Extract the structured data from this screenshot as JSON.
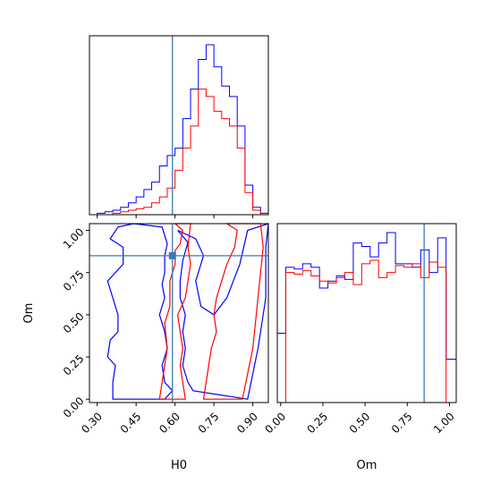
{
  "chart_data": {
    "type": "corner",
    "parameters": [
      "H0",
      "Om"
    ],
    "colors": {
      "series_a": "#0000ff",
      "series_b": "#ff0000",
      "truth": "#3a7bb8"
    },
    "truth": {
      "H0": 0.59,
      "Om": 0.85
    },
    "axes": {
      "H0": {
        "label": "H0",
        "range": [
          0.27,
          0.96
        ],
        "ticks": [
          0.3,
          0.45,
          0.6,
          0.75,
          0.9
        ],
        "tick_labels": [
          "0.30",
          "0.45",
          "0.60",
          "0.75",
          "0.90"
        ]
      },
      "Om": {
        "label": "Om",
        "range": [
          -0.02,
          1.04
        ],
        "ticks": [
          0.0,
          0.25,
          0.5,
          0.75,
          1.0
        ],
        "tick_labels": [
          "0.00",
          "0.25",
          "0.50",
          "0.75",
          "1.00"
        ]
      }
    },
    "histogram_H0": {
      "bin_edges": [
        0.27,
        0.3,
        0.33,
        0.36,
        0.39,
        0.42,
        0.45,
        0.48,
        0.51,
        0.54,
        0.57,
        0.6,
        0.63,
        0.66,
        0.69,
        0.72,
        0.75,
        0.78,
        0.81,
        0.84,
        0.87,
        0.9,
        0.93,
        0.96
      ],
      "series": [
        {
          "color": "blue",
          "counts": [
            0,
            1,
            2,
            3,
            5,
            8,
            12,
            17,
            22,
            33,
            40,
            45,
            65,
            85,
            105,
            115,
            100,
            87,
            80,
            60,
            20,
            5,
            1
          ]
        },
        {
          "color": "red",
          "counts": [
            0,
            0,
            0,
            1,
            2,
            3,
            4,
            5,
            8,
            12,
            18,
            30,
            45,
            60,
            85,
            80,
            70,
            65,
            60,
            45,
            15,
            3,
            0
          ]
        }
      ]
    },
    "histogram_Om": {
      "bin_edges": [
        -0.02,
        0.03,
        0.08,
        0.13,
        0.18,
        0.23,
        0.28,
        0.33,
        0.38,
        0.43,
        0.48,
        0.53,
        0.58,
        0.63,
        0.68,
        0.73,
        0.78,
        0.83,
        0.88,
        0.93,
        0.98,
        1.04
      ],
      "series": [
        {
          "color": "blue",
          "counts": [
            40,
            78,
            77,
            80,
            78,
            66,
            70,
            73,
            71,
            92,
            90,
            84,
            92,
            98,
            80,
            80,
            78,
            88,
            75,
            95,
            25
          ]
        },
        {
          "color": "red",
          "counts": [
            0,
            75,
            74,
            76,
            73,
            70,
            69,
            72,
            75,
            68,
            80,
            82,
            72,
            75,
            79,
            78,
            80,
            72,
            81,
            78,
            0
          ]
        }
      ]
    },
    "contours": [
      {
        "color": "blue",
        "level": "outer",
        "vertices": [
          [
            0.44,
            1.04
          ],
          [
            0.55,
            1.02
          ],
          [
            0.57,
            0.92
          ],
          [
            0.56,
            0.85
          ],
          [
            0.56,
            0.75
          ],
          [
            0.55,
            0.68
          ],
          [
            0.56,
            0.6
          ],
          [
            0.54,
            0.5
          ],
          [
            0.56,
            0.4
          ],
          [
            0.57,
            0.3
          ],
          [
            0.55,
            0.2
          ],
          [
            0.56,
            0.1
          ],
          [
            0.59,
            0.05
          ],
          [
            0.56,
            0.0
          ],
          [
            0.36,
            0.0
          ],
          [
            0.36,
            0.1
          ],
          [
            0.37,
            0.2
          ],
          [
            0.34,
            0.25
          ],
          [
            0.35,
            0.35
          ],
          [
            0.38,
            0.4
          ],
          [
            0.38,
            0.5
          ],
          [
            0.36,
            0.6
          ],
          [
            0.34,
            0.7
          ],
          [
            0.4,
            0.8
          ],
          [
            0.4,
            0.9
          ],
          [
            0.35,
            0.95
          ],
          [
            0.38,
            1.02
          ]
        ]
      },
      {
        "color": "blue",
        "level": "inner",
        "vertices": [
          [
            0.61,
            1.0
          ],
          [
            0.65,
            0.93
          ],
          [
            0.63,
            0.82
          ],
          [
            0.62,
            0.7
          ],
          [
            0.62,
            0.6
          ],
          [
            0.64,
            0.5
          ],
          [
            0.63,
            0.4
          ],
          [
            0.64,
            0.3
          ],
          [
            0.63,
            0.2
          ],
          [
            0.65,
            0.1
          ],
          [
            0.67,
            0.05
          ],
          [
            0.88,
            0.0
          ],
          [
            0.92,
            0.3
          ],
          [
            0.95,
            0.6
          ],
          [
            0.95,
            0.9
          ],
          [
            0.96,
            1.04
          ],
          [
            0.88,
            1.0
          ],
          [
            0.85,
            0.8
          ],
          [
            0.8,
            0.6
          ],
          [
            0.75,
            0.5
          ],
          [
            0.7,
            0.55
          ],
          [
            0.68,
            0.7
          ],
          [
            0.71,
            0.85
          ],
          [
            0.68,
            0.95
          ]
        ]
      },
      {
        "color": "red",
        "level": "outer",
        "vertices": [
          [
            0.6,
            1.04
          ],
          [
            0.63,
            1.0
          ],
          [
            0.62,
            0.92
          ],
          [
            0.6,
            0.88
          ],
          [
            0.6,
            0.8
          ],
          [
            0.58,
            0.7
          ],
          [
            0.58,
            0.55
          ],
          [
            0.56,
            0.45
          ],
          [
            0.57,
            0.3
          ],
          [
            0.56,
            0.2
          ],
          [
            0.55,
            0.1
          ],
          [
            0.54,
            0.0
          ],
          [
            0.64,
            0.0
          ],
          [
            0.63,
            0.1
          ],
          [
            0.62,
            0.2
          ],
          [
            0.63,
            0.3
          ],
          [
            0.62,
            0.4
          ],
          [
            0.61,
            0.5
          ],
          [
            0.64,
            0.6
          ],
          [
            0.65,
            0.7
          ],
          [
            0.66,
            0.8
          ],
          [
            0.65,
            0.9
          ],
          [
            0.66,
            1.04
          ]
        ]
      },
      {
        "color": "red",
        "level": "inner",
        "vertices": [
          [
            0.8,
            1.04
          ],
          [
            0.84,
            1.0
          ],
          [
            0.83,
            0.9
          ],
          [
            0.8,
            0.8
          ],
          [
            0.78,
            0.7
          ],
          [
            0.76,
            0.6
          ],
          [
            0.75,
            0.5
          ],
          [
            0.76,
            0.4
          ],
          [
            0.74,
            0.3
          ],
          [
            0.73,
            0.2
          ],
          [
            0.72,
            0.1
          ],
          [
            0.71,
            0.0
          ],
          [
            0.86,
            0.0
          ],
          [
            0.9,
            0.3
          ],
          [
            0.92,
            0.6
          ],
          [
            0.94,
            0.9
          ],
          [
            0.93,
            1.04
          ]
        ]
      }
    ]
  }
}
